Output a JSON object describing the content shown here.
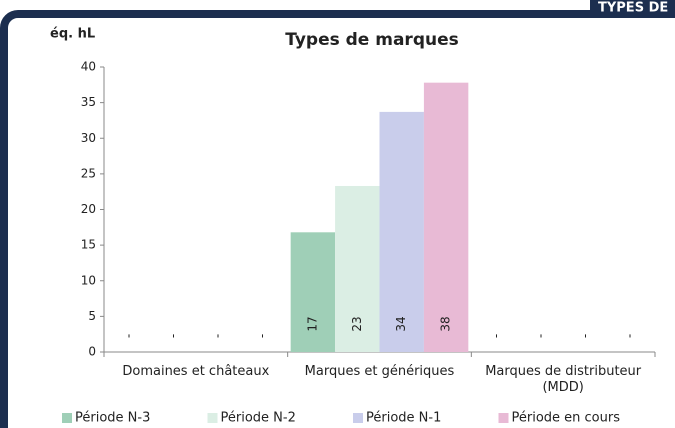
{
  "tab": "TYPES DE",
  "chart_data": {
    "type": "bar",
    "title": "Types de marques",
    "y_label": "éq. hL",
    "categories": [
      "Domaines et châteaux",
      "Marques et génériques",
      "Marques de distributeur (MDD)"
    ],
    "series": [
      {
        "name": "Période N-3",
        "color": "#9fcfb7",
        "values": [
          null,
          16.8,
          null
        ],
        "value_labels": [
          "-",
          "17",
          "-"
        ]
      },
      {
        "name": "Période N-2",
        "color": "#dbeee4",
        "values": [
          null,
          23.3,
          null
        ],
        "value_labels": [
          "-",
          "23",
          "-"
        ]
      },
      {
        "name": "Période N-1",
        "color": "#c9cdeb",
        "values": [
          null,
          33.7,
          null
        ],
        "value_labels": [
          "-",
          "34",
          "-"
        ]
      },
      {
        "name": "Période en cours",
        "color": "#e8bad5",
        "values": [
          null,
          37.8,
          null
        ],
        "value_labels": [
          "-",
          "38",
          "-"
        ]
      }
    ],
    "ylim": [
      0,
      40
    ],
    "yticks": [
      0,
      5,
      10,
      15,
      20,
      25,
      30,
      35,
      40
    ],
    "grid": false,
    "legend": "bottom"
  }
}
